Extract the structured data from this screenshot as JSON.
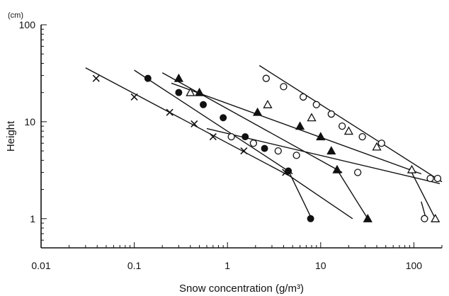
{
  "chart_data": {
    "type": "scatter",
    "title": "",
    "xlabel": "Snow concentration (g/m³)",
    "ylabel": "Height",
    "y_unit_label": "(cm)",
    "xscale": "log",
    "yscale": "log",
    "xlim": [
      0.01,
      200
    ],
    "ylim": [
      0.5,
      100
    ],
    "grid": false,
    "legend": "none",
    "x_tick_labels": [
      {
        "value": 0.01,
        "label": "0.01"
      },
      {
        "value": 0.1,
        "label": "0.1"
      },
      {
        "value": 1,
        "label": "1"
      },
      {
        "value": 10,
        "label": "10"
      },
      {
        "value": 100,
        "label": "100"
      }
    ],
    "y_tick_labels": [
      {
        "value": 1,
        "label": "1"
      },
      {
        "value": 10,
        "label": "10"
      },
      {
        "value": 100,
        "label": "100"
      }
    ],
    "series": [
      {
        "marker": "x",
        "points": [
          [
            0.039,
            28
          ],
          [
            0.1,
            18
          ],
          [
            0.24,
            12.5
          ],
          [
            0.44,
            9.5
          ],
          [
            0.7,
            7
          ],
          [
            1.5,
            5
          ],
          [
            4.2,
            3
          ]
        ],
        "lines": [
          [
            [
              0.03,
              36
            ],
            [
              4.5,
              2.8
            ]
          ],
          [
            [
              4.3,
              2.9
            ],
            [
              22,
              1
            ]
          ]
        ]
      },
      {
        "marker": "filled-circle",
        "points": [
          [
            0.14,
            28
          ],
          [
            0.3,
            20
          ],
          [
            0.55,
            15
          ],
          [
            0.9,
            11
          ],
          [
            1.55,
            7
          ],
          [
            2.5,
            5.3
          ],
          [
            4.5,
            3.1
          ],
          [
            7.8,
            1
          ]
        ],
        "lines": [
          [
            [
              0.1,
              34
            ],
            [
              5,
              2.9
            ]
          ],
          [
            [
              4.6,
              3
            ],
            [
              8,
              1
            ]
          ]
        ]
      },
      {
        "marker": "filled-triangle",
        "points": [
          [
            0.3,
            28
          ],
          [
            0.5,
            20
          ],
          [
            2.1,
            12.5
          ],
          [
            6,
            9
          ],
          [
            10,
            7
          ],
          [
            13,
            5
          ],
          [
            15,
            3.2
          ],
          [
            32,
            1
          ]
        ],
        "lines": [
          [
            [
              0.2,
              32
            ],
            [
              17,
              3
            ]
          ],
          [
            [
              15,
              3.2
            ],
            [
              32,
              1
            ]
          ]
        ]
      },
      {
        "marker": "open-circle",
        "points": [
          [
            1.1,
            7
          ],
          [
            1.9,
            6
          ],
          [
            3.5,
            5
          ],
          [
            5.5,
            4.5
          ],
          [
            25,
            3
          ],
          [
            45,
            6
          ],
          [
            150,
            2.6
          ]
        ],
        "lines": [
          [
            [
              0.6,
              8.5
            ],
            [
              190,
              2.3
            ]
          ],
          [
            [
              120,
              1.5
            ],
            [
              135,
              1
            ]
          ]
        ]
      },
      {
        "marker": "open-triangle",
        "points": [
          [
            0.4,
            20
          ],
          [
            2.7,
            15
          ],
          [
            8,
            11
          ],
          [
            20,
            8
          ],
          [
            40,
            5.5
          ],
          [
            95,
            3.2
          ],
          [
            170,
            1
          ]
        ],
        "lines": [
          [
            [
              0.25,
              25
            ],
            [
              120,
              2.9
            ]
          ],
          [
            [
              90,
              3.3
            ],
            [
              170,
              1
            ]
          ]
        ]
      },
      {
        "marker": "open-circle",
        "points": [
          [
            2.6,
            28
          ],
          [
            4,
            23
          ],
          [
            6.5,
            18
          ],
          [
            9,
            15
          ],
          [
            13,
            12
          ],
          [
            17,
            9
          ],
          [
            28,
            7
          ],
          [
            180,
            2.6
          ]
        ],
        "lines": [
          [
            [
              2.2,
              38
            ],
            [
              200,
              2.4
            ]
          ]
        ]
      },
      {
        "marker": "open-circle",
        "points": [
          [
            130,
            1
          ]
        ],
        "lines": []
      }
    ]
  }
}
